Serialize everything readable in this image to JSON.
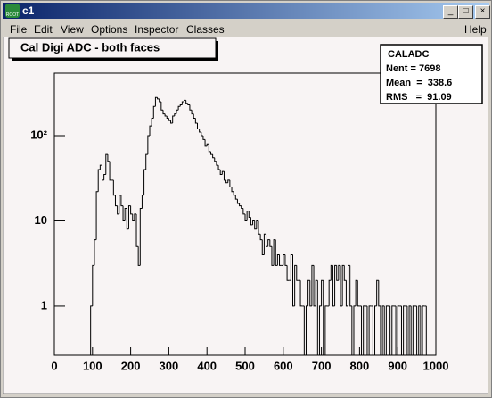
{
  "window": {
    "title": "c1",
    "icon_text": "ROOT",
    "menu": [
      "File",
      "Edit",
      "View",
      "Options",
      "Inspector",
      "Classes"
    ],
    "help": "Help"
  },
  "chart_data": {
    "type": "histogram",
    "title": "Cal Digi ADC - both faces",
    "stats": {
      "name": "CALADC",
      "lines": [
        "Nent = 7698",
        "Mean  =  338.6",
        "RMS   =  91.09"
      ]
    },
    "log_y": true,
    "color": "#000000",
    "xlim": [
      0,
      1000
    ],
    "xticks": [
      0,
      100,
      200,
      300,
      400,
      500,
      600,
      700,
      800,
      900,
      1000
    ],
    "ylim": [
      0.265,
      541
    ],
    "yticks": [
      1,
      10,
      {
        "value": 100,
        "label": "10²"
      }
    ],
    "bins": [
      0,
      5,
      10,
      15,
      20,
      25,
      30,
      35,
      40,
      45,
      50,
      55,
      60,
      65,
      70,
      75,
      80,
      85,
      90,
      95,
      100,
      105,
      110,
      115,
      120,
      125,
      130,
      135,
      140,
      145,
      150,
      155,
      160,
      165,
      170,
      175,
      180,
      185,
      190,
      195,
      200,
      205,
      210,
      215,
      220,
      225,
      230,
      235,
      240,
      245,
      250,
      255,
      260,
      265,
      270,
      275,
      280,
      285,
      290,
      295,
      300,
      305,
      310,
      315,
      320,
      325,
      330,
      335,
      340,
      345,
      350,
      355,
      360,
      365,
      370,
      375,
      380,
      385,
      390,
      395,
      400,
      405,
      410,
      415,
      420,
      425,
      430,
      435,
      440,
      445,
      450,
      455,
      460,
      465,
      470,
      475,
      480,
      485,
      490,
      495,
      500,
      505,
      510,
      515,
      520,
      525,
      530,
      535,
      540,
      545,
      550,
      555,
      560,
      565,
      570,
      575,
      580,
      585,
      590,
      595,
      600,
      605,
      610,
      615,
      620,
      625,
      630,
      635,
      640,
      645,
      650,
      655,
      660,
      665,
      670,
      675,
      680,
      685,
      690,
      695,
      700,
      705,
      710,
      715,
      720,
      725,
      730,
      735,
      740,
      745,
      750,
      755,
      760,
      765,
      770,
      775,
      780,
      785,
      790,
      795,
      800,
      805,
      810,
      815,
      820,
      825,
      830,
      835,
      840,
      845,
      850,
      855,
      860,
      865,
      870,
      875,
      880,
      885,
      890,
      895,
      900,
      905,
      910,
      915,
      920,
      925,
      930,
      935,
      940,
      945,
      950,
      955,
      960,
      965,
      970,
      975,
      980,
      985,
      990,
      995,
      1000
    ],
    "values": [
      0,
      0,
      0,
      0,
      0,
      0,
      0,
      0,
      0,
      0,
      0,
      0,
      0,
      0,
      0,
      0,
      0,
      0,
      0,
      1,
      3,
      6,
      22,
      40,
      45,
      30,
      35,
      60,
      50,
      30,
      30,
      20,
      15,
      12,
      20,
      15,
      10,
      14,
      8,
      15,
      12,
      10,
      12,
      5,
      3,
      14,
      20,
      40,
      60,
      100,
      130,
      160,
      220,
      280,
      270,
      250,
      200,
      180,
      170,
      160,
      150,
      140,
      170,
      180,
      200,
      220,
      230,
      250,
      260,
      240,
      230,
      200,
      180,
      160,
      140,
      120,
      110,
      100,
      90,
      75,
      80,
      65,
      60,
      55,
      50,
      45,
      40,
      35,
      38,
      30,
      28,
      30,
      25,
      22,
      20,
      18,
      16,
      15,
      14,
      12,
      10,
      13,
      11,
      9,
      10,
      8,
      10,
      7,
      6,
      4,
      7,
      5,
      6,
      5,
      3,
      6,
      3,
      4,
      3,
      3,
      4,
      3,
      2,
      2,
      4,
      1,
      3,
      2,
      2,
      1,
      1,
      0,
      1,
      2,
      1,
      3,
      1,
      2,
      0,
      1,
      2,
      0,
      1,
      1,
      2,
      3,
      1,
      3,
      2,
      3,
      1,
      3,
      2,
      1,
      3,
      1,
      0,
      1,
      2,
      1,
      1,
      0,
      1,
      1,
      0,
      1,
      1,
      0,
      1,
      2,
      1,
      0,
      1,
      0,
      1,
      1,
      0,
      1,
      1,
      0,
      1,
      1,
      0,
      1,
      1,
      0,
      1,
      0,
      1,
      1,
      0,
      1,
      0,
      1,
      1,
      0,
      0,
      0,
      0,
      0
    ]
  }
}
